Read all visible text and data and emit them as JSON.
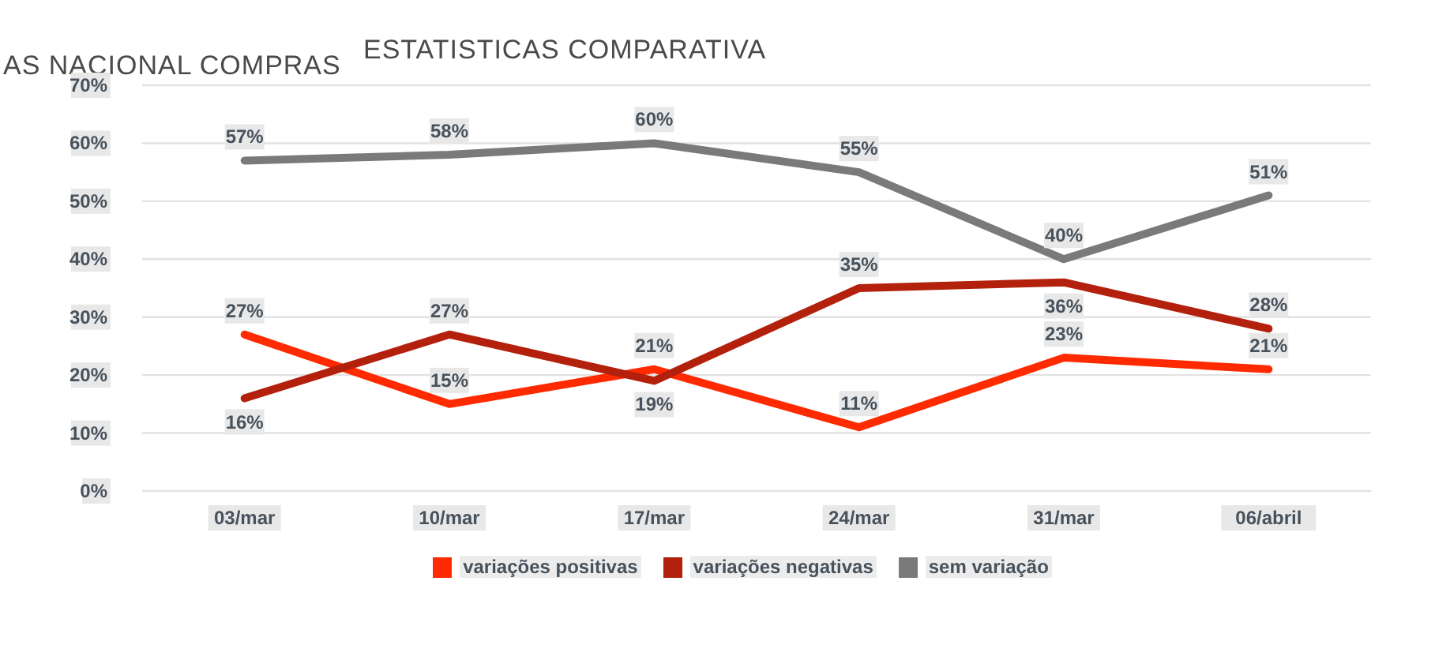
{
  "chart_data": {
    "type": "line",
    "title": "ESTATISTICAS COMPARATIVA",
    "annotations": [
      "AS NACIONAL COMPRAS"
    ],
    "categories": [
      "03/mar",
      "10/mar",
      "17/mar",
      "24/mar",
      "31/mar",
      "06/abril"
    ],
    "series": [
      {
        "name": "variações positivas",
        "color": "#ff2a00",
        "values": [
          27,
          15,
          21,
          11,
          23,
          21
        ],
        "value_labels": [
          "27%",
          "15%",
          "21%",
          "11%",
          "23%",
          "21%"
        ]
      },
      {
        "name": "variações negativas",
        "color": "#b3200c",
        "values": [
          16,
          27,
          19,
          35,
          36,
          28
        ],
        "value_labels": [
          "16%",
          "27%",
          "19%",
          "35%",
          "36%",
          "28%"
        ]
      },
      {
        "name": "sem variação",
        "color": "#7a7a7a",
        "values": [
          57,
          58,
          60,
          55,
          40,
          51
        ],
        "value_labels": [
          "57%",
          "58%",
          "60%",
          "55%",
          "40%",
          "51%"
        ]
      }
    ],
    "ylim": [
      0,
      70
    ],
    "yticks": [
      {
        "value": 0,
        "label": "0%"
      },
      {
        "value": 10,
        "label": "10%"
      },
      {
        "value": 20,
        "label": "20%"
      },
      {
        "value": 30,
        "label": "30%"
      },
      {
        "value": 40,
        "label": "40%"
      },
      {
        "value": 50,
        "label": "50%"
      },
      {
        "value": 60,
        "label": "60%"
      },
      {
        "value": 70,
        "label": "70%"
      }
    ],
    "grid": "y",
    "legend": "bottom",
    "marker": "none",
    "line_style": "solid"
  }
}
